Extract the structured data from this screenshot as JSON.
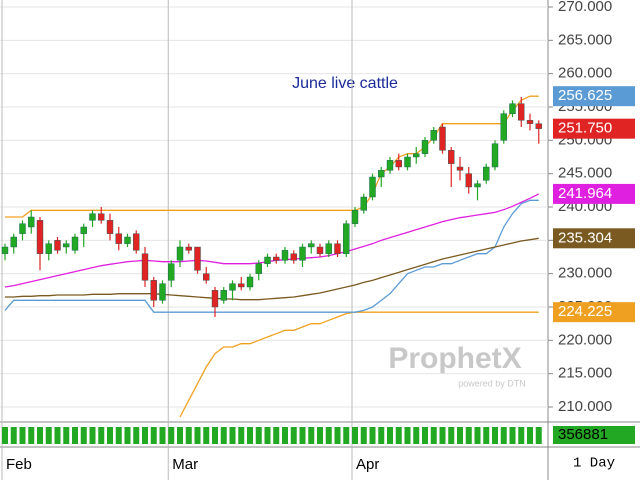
{
  "chart_data": {
    "type": "candlestick",
    "annotation": "June live cattle",
    "watermark": "ProphetX",
    "watermark_sub": "powered by DTN",
    "period": "1 Day",
    "categories": [
      "Feb",
      null,
      null,
      null,
      null,
      null,
      null,
      null,
      null,
      null,
      null,
      null,
      null,
      null,
      null,
      null,
      null,
      null,
      null,
      "Mar",
      null,
      null,
      null,
      null,
      null,
      null,
      null,
      null,
      null,
      null,
      null,
      null,
      null,
      null,
      null,
      null,
      null,
      null,
      null,
      null,
      "Apr",
      null,
      null,
      null,
      null,
      null,
      null,
      null,
      null,
      null,
      null,
      null,
      null,
      null,
      null,
      null,
      null,
      null,
      null,
      null,
      null,
      null
    ],
    "open": [
      233,
      234,
      236,
      237,
      238,
      233,
      235,
      234,
      233.5,
      236,
      238,
      239,
      238,
      236,
      234.5,
      236,
      233,
      229,
      226,
      229,
      232,
      234,
      234,
      230,
      227.5,
      226,
      227.5,
      228.5,
      228,
      230,
      231.5,
      232.5,
      232,
      233,
      232,
      234,
      234,
      233,
      234.5,
      233,
      237.5,
      239.5,
      241.5,
      244.5,
      245.5,
      247,
      246,
      247.5,
      248,
      250,
      252,
      248.5,
      246,
      245,
      243,
      244,
      246,
      250,
      254,
      255.5,
      253,
      252.5
    ],
    "high": [
      234.5,
      236,
      238,
      239.5,
      238.5,
      235,
      235.5,
      235,
      236,
      237.5,
      239.5,
      240,
      239,
      237,
      236,
      236.5,
      234,
      229.5,
      229,
      232,
      235,
      234.5,
      234,
      231,
      228,
      228,
      229,
      229.5,
      230,
      232,
      233,
      233,
      234,
      233.5,
      234.5,
      235,
      234.5,
      235,
      235,
      238,
      240,
      242,
      245,
      246,
      247.5,
      248,
      248,
      249,
      250.5,
      252,
      252.5,
      249,
      247.5,
      246,
      244,
      246.5,
      250,
      254.5,
      256,
      256.5,
      254,
      253
    ],
    "low": [
      232,
      233,
      235,
      236,
      230.5,
      232,
      233,
      233,
      233,
      234,
      237,
      237.5,
      235,
      233.5,
      234,
      233,
      228,
      225,
      225.5,
      228,
      231,
      233,
      230,
      228.5,
      223.5,
      225.5,
      226,
      227.5,
      227.5,
      229,
      231,
      231.5,
      231.5,
      231.5,
      231,
      233,
      232.5,
      232.5,
      232.5,
      232.5,
      237,
      239,
      241,
      243,
      245,
      245.5,
      245.5,
      246.5,
      247.5,
      249.5,
      248,
      243,
      244,
      242,
      241,
      243.5,
      245.5,
      249.5,
      253.5,
      252,
      251.5,
      249.5
    ],
    "close": [
      234,
      235.5,
      237.5,
      238.5,
      233,
      234.5,
      233.5,
      234.5,
      235.5,
      237,
      239,
      238,
      236,
      234.5,
      235.5,
      233.5,
      229,
      226,
      228.5,
      231.5,
      234,
      233.5,
      230.5,
      229,
      225,
      227.5,
      228.5,
      228,
      229.5,
      231.5,
      232.5,
      232,
      233.5,
      232,
      234,
      234.5,
      233,
      234.5,
      233,
      237.5,
      239.5,
      241.5,
      244.5,
      245.5,
      247,
      246,
      247.5,
      248,
      250,
      251.5,
      248.5,
      246.5,
      245.5,
      243,
      243.5,
      246,
      249.5,
      254,
      255.5,
      253,
      252.5,
      251.75
    ],
    "up_color": "#22a822",
    "down_color": "#e02424",
    "overlays": [
      {
        "color": "#f0a020",
        "values": [
          238.5,
          238.5,
          238.5,
          239.5,
          239.5,
          239.5,
          239.5,
          239.5,
          239.5,
          239.5,
          239.5,
          239.5,
          239.5,
          239.5,
          239.5,
          239.5,
          239.5,
          239.5,
          239.5,
          239.5,
          239.5,
          239.5,
          239.5,
          239.5,
          239.5,
          239.5,
          239.5,
          239.5,
          239.5,
          239.5,
          239.5,
          239.5,
          239.5,
          239.5,
          239.5,
          239.5,
          239.5,
          239.5,
          239.5,
          239.5,
          239.5,
          240,
          242,
          245,
          246,
          247.5,
          248,
          248,
          249,
          250.5,
          252.5,
          252.5,
          252.5,
          252.5,
          252.5,
          252.5,
          252.5,
          252.5,
          254.5,
          256,
          256.625,
          256.625
        ]
      },
      {
        "color": "#f0a020",
        "values": [
          null,
          null,
          null,
          null,
          null,
          null,
          null,
          null,
          null,
          null,
          null,
          null,
          null,
          null,
          null,
          null,
          null,
          null,
          null,
          null,
          208.5,
          211,
          213.5,
          216,
          218,
          219,
          219,
          219.5,
          219.5,
          220,
          220.5,
          221,
          221.5,
          221.5,
          222,
          222.5,
          222.5,
          223,
          223.5,
          224,
          224.225,
          224.225,
          224.225,
          224.225,
          224.225,
          224.225,
          224.225,
          224.225,
          224.225,
          224.225,
          224.225,
          224.225,
          224.225,
          224.225,
          224.225,
          224.225,
          224.225,
          224.225,
          224.225,
          224.225,
          224.225,
          224.225
        ]
      },
      {
        "color": "#5b9bd5",
        "values": [
          224.5,
          226,
          226,
          226,
          226,
          226,
          226,
          226,
          226,
          226,
          226,
          226,
          226,
          226,
          226,
          226,
          226,
          224.225,
          224.225,
          224.225,
          224.225,
          224.225,
          224.225,
          224.225,
          224.225,
          224.225,
          224.225,
          224.225,
          224.225,
          224.225,
          224.225,
          224.225,
          224.225,
          224.225,
          224.225,
          224.225,
          224.225,
          224.225,
          224.225,
          224.225,
          224.225,
          224.5,
          225,
          226,
          227,
          228.5,
          230,
          230.5,
          231,
          231,
          231.5,
          231.5,
          232,
          232.5,
          233,
          233,
          234,
          237,
          239,
          240.5,
          241,
          241
        ]
      },
      {
        "color": "#e020e0",
        "values": [
          228.0,
          228.2,
          228.5,
          228.8,
          229.1,
          229.4,
          229.7,
          230.0,
          230.3,
          230.6,
          230.9,
          231.2,
          231.4,
          231.6,
          231.8,
          231.9,
          232.0,
          231.9,
          231.8,
          231.8,
          231.8,
          231.9,
          232.0,
          231.9,
          231.7,
          231.5,
          231.5,
          231.5,
          231.5,
          231.6,
          231.8,
          232.0,
          232.1,
          232.2,
          232.3,
          232.4,
          232.5,
          232.7,
          233.0,
          233.3,
          233.7,
          234.1,
          234.5,
          235.0,
          235.4,
          235.8,
          236.2,
          236.6,
          237.0,
          237.4,
          237.8,
          238.1,
          238.4,
          238.6,
          238.8,
          239.0,
          239.2,
          239.6,
          240.1,
          240.7,
          241.3,
          241.964
        ]
      },
      {
        "color": "#7a5a20",
        "values": [
          226.5,
          226.5,
          226.6,
          226.6,
          226.7,
          226.7,
          226.8,
          226.8,
          226.8,
          226.8,
          226.9,
          226.9,
          226.9,
          227.0,
          227.0,
          227.0,
          227.0,
          227.0,
          226.9,
          226.8,
          226.7,
          226.6,
          226.5,
          226.4,
          226.3,
          226.2,
          226.2,
          226.1,
          226.1,
          226.1,
          226.2,
          226.3,
          226.4,
          226.5,
          226.7,
          226.9,
          227.1,
          227.4,
          227.7,
          228.0,
          228.3,
          228.7,
          229.0,
          229.4,
          229.8,
          230.2,
          230.6,
          231.0,
          231.4,
          231.8,
          232.2,
          232.5,
          232.8,
          233.1,
          233.4,
          233.7,
          234.0,
          234.3,
          234.6,
          234.9,
          235.1,
          235.304
        ]
      }
    ],
    "price_labels": [
      {
        "value": 256.625,
        "label": "256.625",
        "color": "#5b9bd5"
      },
      {
        "value": 251.75,
        "label": "251.750",
        "color": "#e02424"
      },
      {
        "value": 241.964,
        "label": "241.964",
        "color": "#e020e0"
      },
      {
        "value": 235.304,
        "label": "235.304",
        "color": "#7a5a20"
      },
      {
        "value": 224.225,
        "label": "224.225",
        "color": "#f0a020"
      }
    ],
    "volume_label": {
      "value": 356881,
      "label": "356881"
    },
    "volume_color": "#22a822",
    "ylim": [
      208.05,
      271.05
    ],
    "yticks": [
      {
        "value": 210,
        "label": "210.000"
      },
      {
        "value": 215,
        "label": "215.000"
      },
      {
        "value": 220,
        "label": "220.000"
      },
      {
        "value": 225,
        "label": "225.000"
      },
      {
        "value": 230,
        "label": "230.000"
      },
      {
        "value": 235,
        "label": "235.000"
      },
      {
        "value": 240,
        "label": "240.000"
      },
      {
        "value": 245,
        "label": "245.000"
      },
      {
        "value": 250,
        "label": "250.000"
      },
      {
        "value": 255,
        "label": "255.000"
      },
      {
        "value": 260,
        "label": "260.000"
      },
      {
        "value": 265,
        "label": "265.000"
      },
      {
        "value": 270,
        "label": "270.000"
      }
    ],
    "grid": true
  }
}
